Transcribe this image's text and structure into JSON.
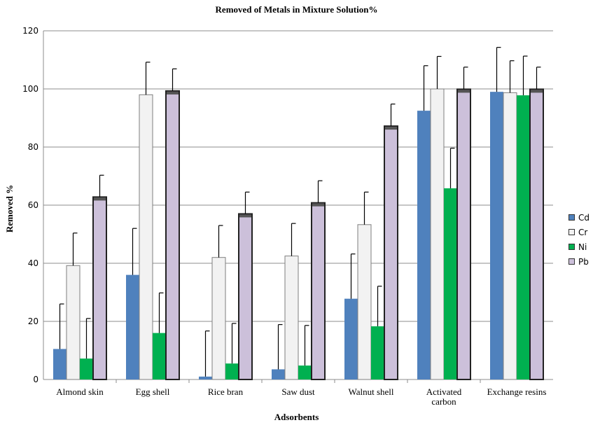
{
  "chart_data": {
    "type": "bar",
    "title": "Removed of Metals in Mixture Solution%",
    "xlabel": "Adsorbents",
    "ylabel": "Removed %",
    "ylim": [
      0,
      120
    ],
    "yticks": [
      0,
      20,
      40,
      60,
      80,
      100,
      120
    ],
    "grid": true,
    "legend_position": "right",
    "categories": [
      "Almond skin",
      "Egg shell",
      "Rice bran",
      "Saw dust",
      "Walnut shell",
      "Activated carbon",
      "Exchange resins"
    ],
    "series": [
      {
        "name": "Cd",
        "color": "#4f81bd",
        "values": [
          10.5,
          36,
          1,
          3.5,
          27.8,
          92.5,
          99
        ],
        "errors": [
          15.5,
          16,
          15.7,
          15.4,
          15.4,
          15.5,
          15.3
        ]
      },
      {
        "name": "Cr",
        "color": "#f2f2f2",
        "values": [
          39.2,
          98,
          42,
          42.5,
          53.3,
          100,
          98.7
        ],
        "errors": [
          11.2,
          11.2,
          11,
          11.2,
          11.2,
          11.2,
          11
        ]
      },
      {
        "name": "Ni",
        "color": "#00b050",
        "values": [
          7.2,
          16,
          5.5,
          4.8,
          18.3,
          65.8,
          97.8
        ],
        "errors": [
          13.8,
          13.8,
          13.8,
          13.8,
          13.8,
          13.8,
          13.5
        ]
      },
      {
        "name": "Pb",
        "color": "#ccc0da",
        "values": [
          62.8,
          99.3,
          57,
          60.8,
          87.2,
          99.9,
          99.9
        ],
        "errors": [
          7.5,
          7.6,
          7.5,
          7.6,
          7.6,
          7.6,
          7.6
        ]
      }
    ]
  }
}
